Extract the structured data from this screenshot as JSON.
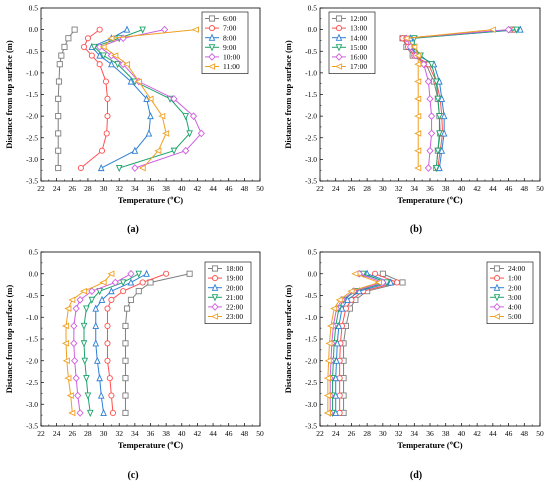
{
  "chart_data": [
    {
      "panel": "(a)",
      "type": "line",
      "xlabel": "Temperature (℃)",
      "ylabel": "Distance from top surface (m)",
      "xlim": [
        22,
        50
      ],
      "ylim": [
        -3.5,
        0.5
      ],
      "xticks": [
        22,
        24,
        26,
        28,
        30,
        32,
        34,
        36,
        38,
        40,
        42,
        44,
        46,
        48,
        50
      ],
      "yticks": [
        0.5,
        0.0,
        -0.5,
        -1.0,
        -1.5,
        -2.0,
        -2.5,
        -3.0,
        -3.5
      ],
      "legend_position": "top-right",
      "depths": [
        0.0,
        -0.2,
        -0.4,
        -0.6,
        -0.8,
        -1.2,
        -1.6,
        -2.0,
        -2.4,
        -2.8,
        -3.2
      ],
      "series": [
        {
          "name": "6:00",
          "color": "#7f7f7f",
          "marker": "square",
          "values": [
            26.3,
            25.5,
            25.0,
            24.6,
            24.4,
            24.3,
            24.2,
            24.2,
            24.2,
            24.2,
            24.2
          ]
        },
        {
          "name": "7:00",
          "color": "#ff4f4f",
          "marker": "circle",
          "values": [
            29.5,
            28.0,
            27.5,
            28.5,
            29.5,
            30.3,
            30.5,
            30.5,
            30.4,
            29.8,
            27.1
          ]
        },
        {
          "name": "8:00",
          "color": "#2d7fd6",
          "marker": "triangle-up",
          "values": [
            33.0,
            31.0,
            28.5,
            29.5,
            31.0,
            33.5,
            35.5,
            36.0,
            35.8,
            34.0,
            29.7
          ]
        },
        {
          "name": "9:00",
          "color": "#1ca36b",
          "marker": "triangle-down",
          "values": [
            35.0,
            32.0,
            28.8,
            30.0,
            31.8,
            34.0,
            38.5,
            40.5,
            41.0,
            39.0,
            32.0
          ]
        },
        {
          "name": "10:00",
          "color": "#cf5fe0",
          "marker": "diamond",
          "values": [
            37.8,
            32.5,
            29.5,
            31.0,
            32.5,
            34.5,
            39.0,
            41.5,
            42.5,
            40.5,
            34.0
          ]
        },
        {
          "name": "11:00",
          "color": "#f0a020",
          "marker": "triangle-left",
          "values": [
            41.8,
            31.0,
            30.0,
            31.5,
            33.0,
            34.5,
            36.0,
            37.5,
            38.0,
            37.0,
            35.0
          ]
        }
      ]
    },
    {
      "panel": "(b)",
      "type": "line",
      "xlabel": "Temperature (℃)",
      "ylabel": "Distance from top surface (m)",
      "xlim": [
        22,
        50
      ],
      "ylim": [
        -3.5,
        0.5
      ],
      "xticks": [
        22,
        24,
        26,
        28,
        30,
        32,
        34,
        36,
        38,
        40,
        42,
        44,
        46,
        48,
        50
      ],
      "yticks": [
        0.5,
        0.0,
        -0.5,
        -1.0,
        -1.5,
        -2.0,
        -2.5,
        -3.0,
        -3.5
      ],
      "legend_position": "top-left",
      "depths": [
        0.0,
        -0.2,
        -0.4,
        -0.6,
        -0.8,
        -1.2,
        -1.6,
        -2.0,
        -2.4,
        -2.8,
        -3.2
      ],
      "series": [
        {
          "name": "12:00",
          "color": "#7f7f7f",
          "marker": "square",
          "values": [
            46.5,
            32.5,
            33.0,
            33.8,
            35.5,
            36.5,
            37.0,
            37.2,
            37.3,
            37.0,
            36.8
          ]
        },
        {
          "name": "13:00",
          "color": "#ff4f4f",
          "marker": "circle",
          "values": [
            46.7,
            32.5,
            33.2,
            34.0,
            35.8,
            36.8,
            37.3,
            37.5,
            37.6,
            37.3,
            37.0
          ]
        },
        {
          "name": "14:00",
          "color": "#2d7fd6",
          "marker": "triangle-up",
          "values": [
            47.5,
            33.5,
            33.5,
            34.5,
            36.5,
            37.2,
            37.5,
            37.8,
            37.8,
            37.5,
            37.2
          ]
        },
        {
          "name": "15:00",
          "color": "#1ca36b",
          "marker": "triangle-down",
          "values": [
            47.0,
            34.0,
            34.0,
            34.8,
            36.2,
            36.8,
            37.0,
            37.2,
            37.2,
            37.0,
            36.8
          ]
        },
        {
          "name": "16:00",
          "color": "#cf5fe0",
          "marker": "diamond",
          "values": [
            46.0,
            33.0,
            33.5,
            34.2,
            35.2,
            35.8,
            36.0,
            36.2,
            36.2,
            36.0,
            35.8
          ]
        },
        {
          "name": "17:00",
          "color": "#f0a020",
          "marker": "triangle-left",
          "values": [
            44.0,
            33.0,
            34.0,
            34.5,
            34.5,
            34.5,
            34.5,
            34.5,
            34.5,
            34.5,
            34.5
          ]
        }
      ]
    },
    {
      "panel": "(c)",
      "type": "line",
      "xlabel": "Temperature (℃)",
      "ylabel": "Distance from top surface (m)",
      "xlim": [
        22,
        50
      ],
      "ylim": [
        -3.5,
        0.5
      ],
      "xticks": [
        22,
        24,
        26,
        28,
        30,
        32,
        34,
        36,
        38,
        40,
        42,
        44,
        46,
        48,
        50
      ],
      "yticks": [
        0.5,
        0.0,
        -0.5,
        -1.0,
        -1.5,
        -2.0,
        -2.5,
        -3.0,
        -3.5
      ],
      "legend_position": "top-right",
      "depths": [
        0.0,
        -0.2,
        -0.4,
        -0.6,
        -0.8,
        -1.2,
        -1.6,
        -2.0,
        -2.4,
        -2.8,
        -3.2
      ],
      "series": [
        {
          "name": "18:00",
          "color": "#7f7f7f",
          "marker": "square",
          "values": [
            41.0,
            36.0,
            34.5,
            33.5,
            33.0,
            32.8,
            32.8,
            32.8,
            32.8,
            32.8,
            32.8
          ]
        },
        {
          "name": "19:00",
          "color": "#ff4f4f",
          "marker": "circle",
          "values": [
            38.0,
            35.0,
            32.5,
            31.0,
            30.5,
            30.5,
            30.5,
            30.5,
            30.8,
            31.0,
            31.2
          ]
        },
        {
          "name": "20:00",
          "color": "#2d7fd6",
          "marker": "triangle-up",
          "values": [
            35.5,
            33.5,
            31.0,
            29.8,
            29.0,
            29.0,
            29.0,
            29.2,
            29.5,
            29.7,
            30.0
          ]
        },
        {
          "name": "21:00",
          "color": "#1ca36b",
          "marker": "triangle-down",
          "values": [
            34.5,
            32.5,
            29.5,
            28.5,
            27.8,
            27.5,
            27.5,
            27.6,
            27.8,
            28.0,
            28.3
          ]
        },
        {
          "name": "22:00",
          "color": "#cf5fe0",
          "marker": "diamond",
          "values": [
            33.5,
            31.5,
            28.5,
            27.0,
            26.5,
            26.2,
            26.2,
            26.3,
            26.5,
            26.7,
            27.0
          ]
        },
        {
          "name": "23:00",
          "color": "#f0a020",
          "marker": "triangle-left",
          "values": [
            31.0,
            30.0,
            27.5,
            26.0,
            25.5,
            25.2,
            25.2,
            25.3,
            25.5,
            25.8,
            26.0
          ]
        }
      ]
    },
    {
      "panel": "(d)",
      "type": "line",
      "xlabel": "Temperature (℃)",
      "ylabel": "Distance from top surface (m)",
      "xlim": [
        22,
        50
      ],
      "ylim": [
        -3.5,
        0.5
      ],
      "xticks": [
        22,
        24,
        26,
        28,
        30,
        32,
        34,
        36,
        38,
        40,
        42,
        44,
        46,
        48,
        50
      ],
      "yticks": [
        0.5,
        0.0,
        -0.5,
        -1.0,
        -1.5,
        -2.0,
        -2.5,
        -3.0,
        -3.5
      ],
      "legend_position": "top-right",
      "depths": [
        0.0,
        -0.2,
        -0.4,
        -0.6,
        -0.8,
        -1.2,
        -1.6,
        -2.0,
        -2.4,
        -2.8,
        -3.2
      ],
      "series": [
        {
          "name": "24:00",
          "color": "#7f7f7f",
          "marker": "square",
          "values": [
            30.0,
            32.5,
            28.0,
            26.5,
            25.8,
            25.3,
            25.0,
            25.0,
            25.0,
            25.0,
            25.0
          ]
        },
        {
          "name": "1:00",
          "color": "#ff4f4f",
          "marker": "circle",
          "values": [
            29.0,
            31.8,
            27.5,
            26.0,
            25.3,
            24.8,
            24.6,
            24.5,
            24.5,
            24.5,
            24.5
          ]
        },
        {
          "name": "2:00",
          "color": "#2d7fd6",
          "marker": "triangle-up",
          "values": [
            28.0,
            31.0,
            27.0,
            25.5,
            24.8,
            24.4,
            24.2,
            24.1,
            24.0,
            24.0,
            24.0
          ]
        },
        {
          "name": "3:00",
          "color": "#1ca36b",
          "marker": "triangle-down",
          "values": [
            27.5,
            30.5,
            26.5,
            25.0,
            24.4,
            24.0,
            23.8,
            23.7,
            23.6,
            23.6,
            23.6
          ]
        },
        {
          "name": "4:00",
          "color": "#cf5fe0",
          "marker": "diamond",
          "values": [
            27.0,
            30.0,
            26.3,
            24.8,
            24.1,
            23.7,
            23.5,
            23.4,
            23.3,
            23.3,
            23.3
          ]
        },
        {
          "name": "5:00",
          "color": "#f0a020",
          "marker": "triangle-left",
          "values": [
            26.5,
            29.5,
            26.0,
            24.5,
            23.8,
            23.4,
            23.2,
            23.1,
            23.0,
            23.0,
            23.0
          ]
        }
      ]
    }
  ]
}
